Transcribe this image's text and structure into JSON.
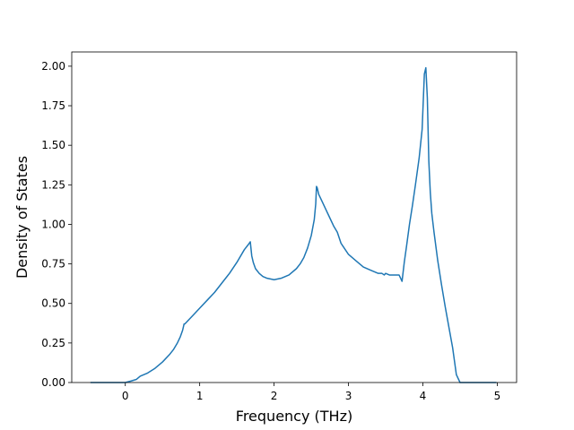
{
  "chart_data": {
    "type": "line",
    "title": "",
    "xlabel": "Frequency (THz)",
    "ylabel": "Density of States",
    "xlim": [
      -0.72,
      5.26
    ],
    "ylim": [
      0.0,
      2.09
    ],
    "x_ticks": [
      0,
      1,
      2,
      3,
      4,
      5
    ],
    "x_tick_labels": [
      "0",
      "1",
      "2",
      "3",
      "4",
      "5"
    ],
    "y_ticks": [
      0.0,
      0.25,
      0.5,
      0.75,
      1.0,
      1.25,
      1.5,
      1.75,
      2.0
    ],
    "y_tick_labels": [
      "0.00",
      "0.25",
      "0.50",
      "0.75",
      "1.00",
      "1.25",
      "1.50",
      "1.75",
      "2.00"
    ],
    "grid": false,
    "series_color": "#1f77b4",
    "series": [
      {
        "x": [
          -0.46,
          -0.3,
          -0.1,
          0.0,
          0.08,
          0.15,
          0.2,
          0.25,
          0.3,
          0.4,
          0.5,
          0.6,
          0.65,
          0.7,
          0.74,
          0.77,
          0.79,
          0.8,
          0.82,
          0.9,
          1.0,
          1.1,
          1.2,
          1.3,
          1.4,
          1.5,
          1.6,
          1.65,
          1.68,
          1.7,
          1.72,
          1.75,
          1.8,
          1.85,
          1.9,
          2.0,
          2.1,
          2.2,
          2.3,
          2.35,
          2.4,
          2.45,
          2.5,
          2.54,
          2.56,
          2.57,
          2.58,
          2.6,
          2.65,
          2.7,
          2.75,
          2.8,
          2.85,
          2.9,
          3.0,
          3.1,
          3.2,
          3.3,
          3.4,
          3.45,
          3.48,
          3.5,
          3.55,
          3.6,
          3.65,
          3.68,
          3.7,
          3.72,
          3.75,
          3.78,
          3.82,
          3.86,
          3.9,
          3.95,
          3.99,
          4.02,
          4.04,
          4.06,
          4.08,
          4.1,
          4.12,
          4.15,
          4.2,
          4.25,
          4.3,
          4.35,
          4.4,
          4.45,
          4.5,
          4.52,
          4.54,
          4.6,
          4.8,
          4.98
        ],
        "y": [
          0.0,
          0.0,
          0.0,
          0.0,
          0.01,
          0.02,
          0.04,
          0.05,
          0.06,
          0.09,
          0.13,
          0.18,
          0.21,
          0.25,
          0.29,
          0.33,
          0.37,
          0.37,
          0.38,
          0.42,
          0.47,
          0.52,
          0.57,
          0.63,
          0.69,
          0.76,
          0.84,
          0.87,
          0.89,
          0.8,
          0.76,
          0.72,
          0.69,
          0.67,
          0.66,
          0.65,
          0.66,
          0.68,
          0.72,
          0.75,
          0.79,
          0.85,
          0.93,
          1.03,
          1.13,
          1.24,
          1.23,
          1.19,
          1.14,
          1.09,
          1.04,
          0.99,
          0.95,
          0.88,
          0.81,
          0.77,
          0.73,
          0.71,
          0.69,
          0.69,
          0.68,
          0.69,
          0.68,
          0.68,
          0.68,
          0.68,
          0.66,
          0.64,
          0.76,
          0.86,
          1.0,
          1.12,
          1.25,
          1.42,
          1.6,
          1.95,
          1.99,
          1.8,
          1.4,
          1.2,
          1.07,
          0.95,
          0.77,
          0.62,
          0.48,
          0.35,
          0.22,
          0.05,
          0.0,
          0.0,
          0.0,
          0.0,
          0.0,
          0.0
        ]
      }
    ]
  }
}
